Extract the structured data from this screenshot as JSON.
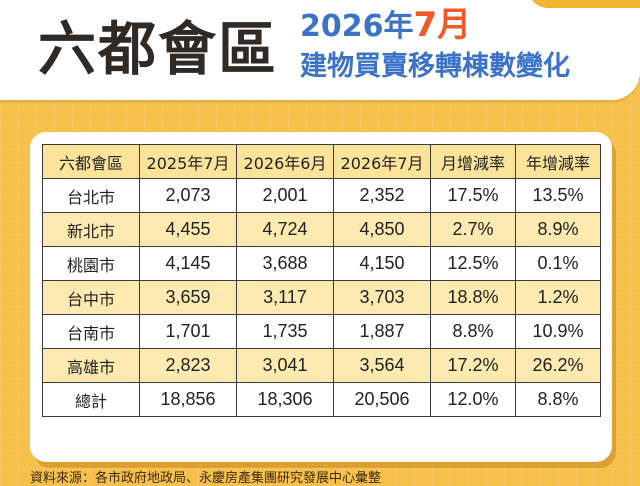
{
  "header": {
    "main_title": "六都會區",
    "subtitle_year": "2026年",
    "subtitle_month": "7月",
    "subtitle_desc": "建物買賣移轉棟數變化"
  },
  "table": {
    "columns": [
      "六都會區",
      "2025年7月",
      "2026年6月",
      "2026年7月",
      "月增減率",
      "年增減率"
    ],
    "rows": [
      {
        "city": "台北市",
        "jul2025": "2,073",
        "jun2026": "2,001",
        "jul2026": "2,352",
        "mom": "17.5%",
        "yoy": "13.5%"
      },
      {
        "city": "新北市",
        "jul2025": "4,455",
        "jun2026": "4,724",
        "jul2026": "4,850",
        "mom": "2.7%",
        "yoy": "8.9%"
      },
      {
        "city": "桃園市",
        "jul2025": "4,145",
        "jun2026": "3,688",
        "jul2026": "4,150",
        "mom": "12.5%",
        "yoy": "0.1%"
      },
      {
        "city": "台中市",
        "jul2025": "3,659",
        "jun2026": "3,117",
        "jul2026": "3,703",
        "mom": "18.8%",
        "yoy": "1.2%"
      },
      {
        "city": "台南市",
        "jul2025": "1,701",
        "jun2026": "1,735",
        "jul2026": "1,887",
        "mom": "8.8%",
        "yoy": "10.9%"
      },
      {
        "city": "高雄市",
        "jul2025": "2,823",
        "jun2026": "3,041",
        "jul2026": "3,564",
        "mom": "17.2%",
        "yoy": "26.2%"
      },
      {
        "city": "總計",
        "jul2025": "18,856",
        "jun2026": "18,306",
        "jul2026": "20,506",
        "mom": "12.0%",
        "yoy": "8.8%"
      }
    ]
  },
  "footer": {
    "source": "資料來源：各市政府地政局、永慶房產集團研究發展中心彙整"
  },
  "colors": {
    "background": "#F7C04A",
    "accent_blue": "#3B73C9",
    "accent_orange": "#F05A28",
    "header_row": "#FBE39A",
    "alt_row": "#FCEAB0"
  }
}
